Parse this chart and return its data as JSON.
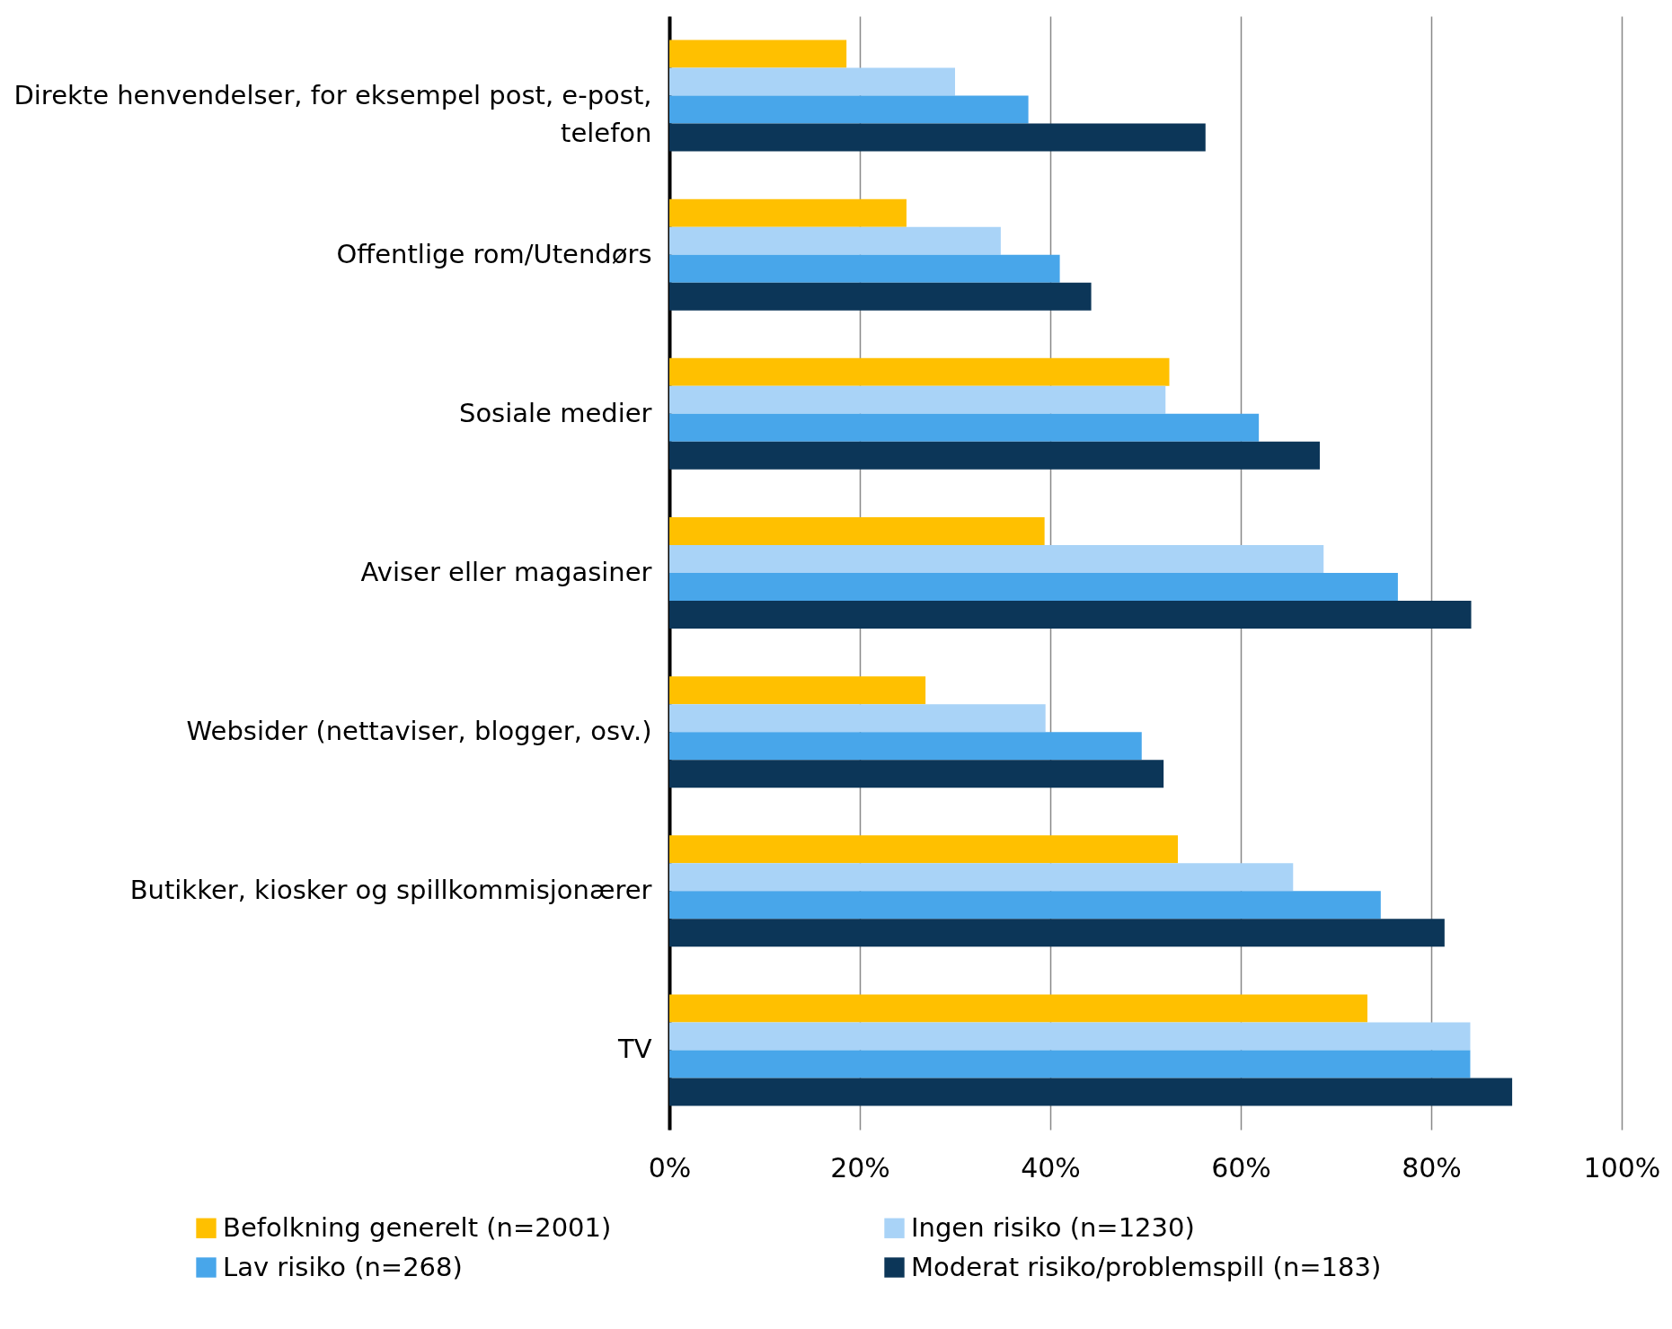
{
  "chart_data": {
    "type": "bar",
    "orientation": "horizontal",
    "categories": [
      "Direkte henvendelser, for eksempel post, e-post, telefon",
      "Offentlige rom/Utendørs",
      "Sosiale medier",
      "Aviser eller magasiner",
      "Websider (nettaviser, blogger, osv.)",
      "Butikker, kiosker og spillkommisjonærer",
      "TV"
    ],
    "series": [
      {
        "name": "Befolkning generelt (n=2001)",
        "color": "#ffc000",
        "values": [
          18.6,
          24.9,
          52.5,
          39.4,
          26.9,
          53.4,
          73.3
        ]
      },
      {
        "name": "Ingen risiko (n=1230)",
        "color": "#a9d3f7",
        "values": [
          30,
          34.8,
          52.1,
          68.7,
          39.5,
          65.5,
          84.1
        ]
      },
      {
        "name": "Lav risiko (n=268)",
        "color": "#48a6ea",
        "values": [
          37.7,
          41,
          61.9,
          76.5,
          49.6,
          74.7,
          84.1
        ]
      },
      {
        "name": "Moderat risiko/problemspill (n=183)",
        "color": "#0c3658",
        "values": [
          56.3,
          44.3,
          68.3,
          84.2,
          51.9,
          81.4,
          88.5
        ]
      }
    ],
    "xlim": [
      0,
      100
    ],
    "xticks": [
      {
        "value": 0,
        "label": "0%"
      },
      {
        "value": 20,
        "label": "20%"
      },
      {
        "value": 40,
        "label": "40%"
      },
      {
        "value": 60,
        "label": "60%"
      },
      {
        "value": 80,
        "label": "80%"
      },
      {
        "value": 100,
        "label": "100%"
      }
    ],
    "grid": "x",
    "legend": "bottom"
  }
}
